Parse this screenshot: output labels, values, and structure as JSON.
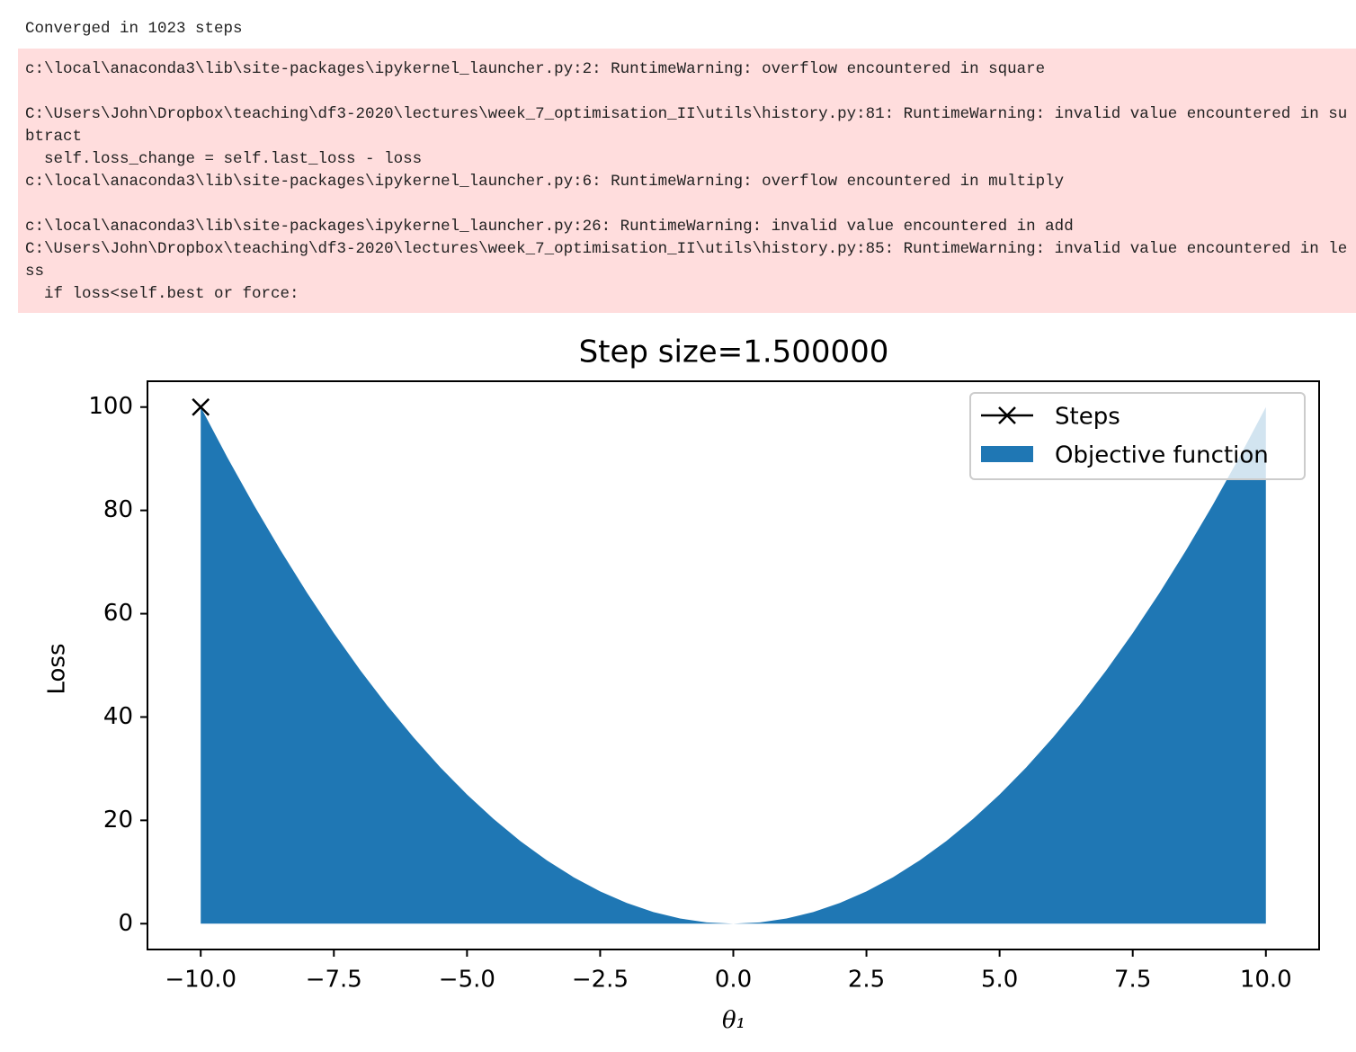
{
  "output": {
    "stdout": "Converged in 1023 steps",
    "stderr": [
      "c:\\local\\anaconda3\\lib\\site-packages\\ipykernel_launcher.py:2: RuntimeWarning: overflow encountered in square",
      "C:\\Users\\John\\Dropbox\\teaching\\df3-2020\\lectures\\week_7_optimisation_II\\utils\\history.py:81: RuntimeWarning: invalid value encountered in su",
      "btract",
      "  self.loss_change = self.last_loss - loss",
      "c:\\local\\anaconda3\\lib\\site-packages\\ipykernel_launcher.py:6: RuntimeWarning: overflow encountered in multiply",
      "c:\\local\\anaconda3\\lib\\site-packages\\ipykernel_launcher.py:26: RuntimeWarning: invalid value encountered in add",
      "C:\\Users\\John\\Dropbox\\teaching\\df3-2020\\lectures\\week_7_optimisation_II\\utils\\history.py:85: RuntimeWarning: invalid value encountered in le",
      "ss",
      "  if loss<self.best or force:"
    ]
  },
  "chart_data": {
    "type": "area",
    "title": "Step size=1.500000",
    "x_label": "θ₁",
    "y_label": "Loss",
    "series": [
      {
        "name": "Steps",
        "color": "#000000",
        "style": "line",
        "marker": "x",
        "x": [
          -10
        ],
        "values": [
          100
        ]
      },
      {
        "name": "Objective function",
        "color": "#1f77b4",
        "style": "fill",
        "x": [
          -10,
          -9.5,
          -9,
          -8.5,
          -8,
          -7.5,
          -7,
          -6.5,
          -6,
          -5.5,
          -5,
          -4.5,
          -4,
          -3.5,
          -3,
          -2.5,
          -2,
          -1.5,
          -1,
          -0.5,
          0,
          0.5,
          1,
          1.5,
          2,
          2.5,
          3,
          3.5,
          4,
          4.5,
          5,
          5.5,
          6,
          6.5,
          7,
          7.5,
          8,
          8.5,
          9,
          9.5,
          10
        ],
        "values": [
          100,
          90.25,
          81,
          72.25,
          64,
          56.25,
          49,
          42.25,
          36,
          30.25,
          25,
          20.25,
          16,
          12.25,
          9,
          6.25,
          4,
          2.25,
          1,
          0.25,
          0,
          0.25,
          1,
          2.25,
          4,
          6.25,
          9,
          12.25,
          16,
          20.25,
          25,
          30.25,
          36,
          42.25,
          49,
          56.25,
          64,
          72.25,
          81,
          90.25,
          100
        ]
      }
    ],
    "xlim": [
      -11,
      11
    ],
    "ylim": [
      -5,
      105
    ],
    "xticks": [
      {
        "value": -10,
        "label": "−10.0"
      },
      {
        "value": -7.5,
        "label": "−7.5"
      },
      {
        "value": -5,
        "label": "−5.0"
      },
      {
        "value": -2.5,
        "label": "−2.5"
      },
      {
        "value": 0,
        "label": "0.0"
      },
      2.5,
      {
        "value": 5,
        "label": "5.0"
      },
      7.5,
      {
        "value": 10,
        "label": "10.0"
      }
    ],
    "yticks": [
      0,
      20,
      40,
      60,
      80,
      100
    ],
    "legend": "upper right"
  }
}
